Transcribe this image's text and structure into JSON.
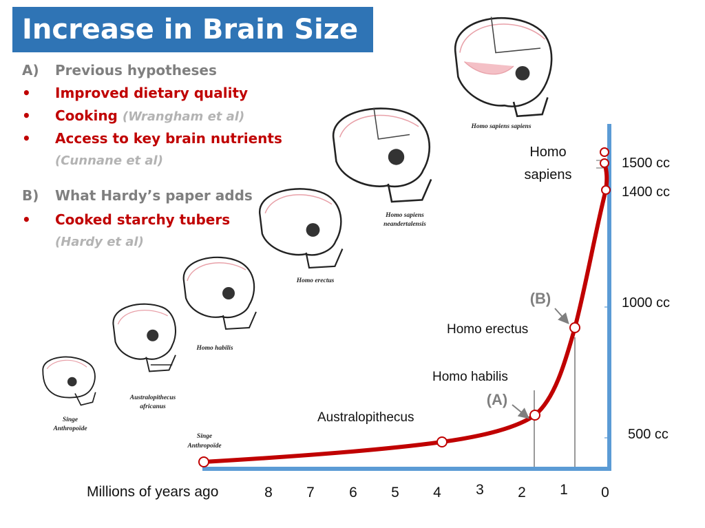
{
  "slide": {
    "title": "Increase in Brain Size",
    "hypotheses": {
      "a_marker": "A)",
      "a_heading": "Previous hypotheses",
      "a_items": [
        "Improved dietary quality",
        "Cooking",
        "Access to key brain nutrients"
      ],
      "cooking_citation": "(Wrangham et al)",
      "nutrients_citation": "(Cunnane et al)",
      "b_marker": "B)",
      "b_heading": "What Hardy’s paper adds",
      "b_items": [
        "Cooked starchy tubers"
      ],
      "tubers_citation": "(Hardy et al)",
      "bullet": "•"
    },
    "colors": {
      "title_bg": "#2f74b5",
      "curve": "#c00000",
      "axis": "#5b9bd5",
      "heading": "#7f7f7f",
      "citation": "#b3b3b3"
    }
  },
  "chart_data": {
    "type": "line",
    "xlabel": "Millions of years ago",
    "x_ticks": [
      "8",
      "7",
      "6",
      "5",
      "4",
      "3",
      "2",
      "1",
      "0"
    ],
    "y_ticks": [
      "500 cc",
      "1000 cc",
      "1400 cc",
      "1500 cc"
    ],
    "points": [
      {
        "mya": 9.4,
        "cc": 390,
        "label": "Singe Anthropoïde"
      },
      {
        "mya": 4.0,
        "cc": 450,
        "label": "Australopithecus"
      },
      {
        "mya": 1.7,
        "cc": 610,
        "label": "Homo habilis"
      },
      {
        "mya": 0.7,
        "cc": 930,
        "label": "Homo erectus"
      },
      {
        "mya": 0.05,
        "cc": 1400,
        "label": ""
      },
      {
        "mya": 0.05,
        "cc": 1520,
        "label": "Homo sapiens"
      },
      {
        "mya": 0.05,
        "cc": 1560,
        "label": ""
      }
    ],
    "markers": [
      {
        "label": "(A)",
        "points_to": "Homo habilis"
      },
      {
        "label": "(B)",
        "points_to": "Homo erectus"
      }
    ]
  },
  "skulls": [
    {
      "name": "Singe Anthropoïde"
    },
    {
      "name": "Australopithecus africanus"
    },
    {
      "name": "Homo habilis"
    },
    {
      "name": "Homo erectus"
    },
    {
      "name": "Homo sapiens neandertalensis"
    },
    {
      "name": "Homo sapiens sapiens"
    }
  ]
}
